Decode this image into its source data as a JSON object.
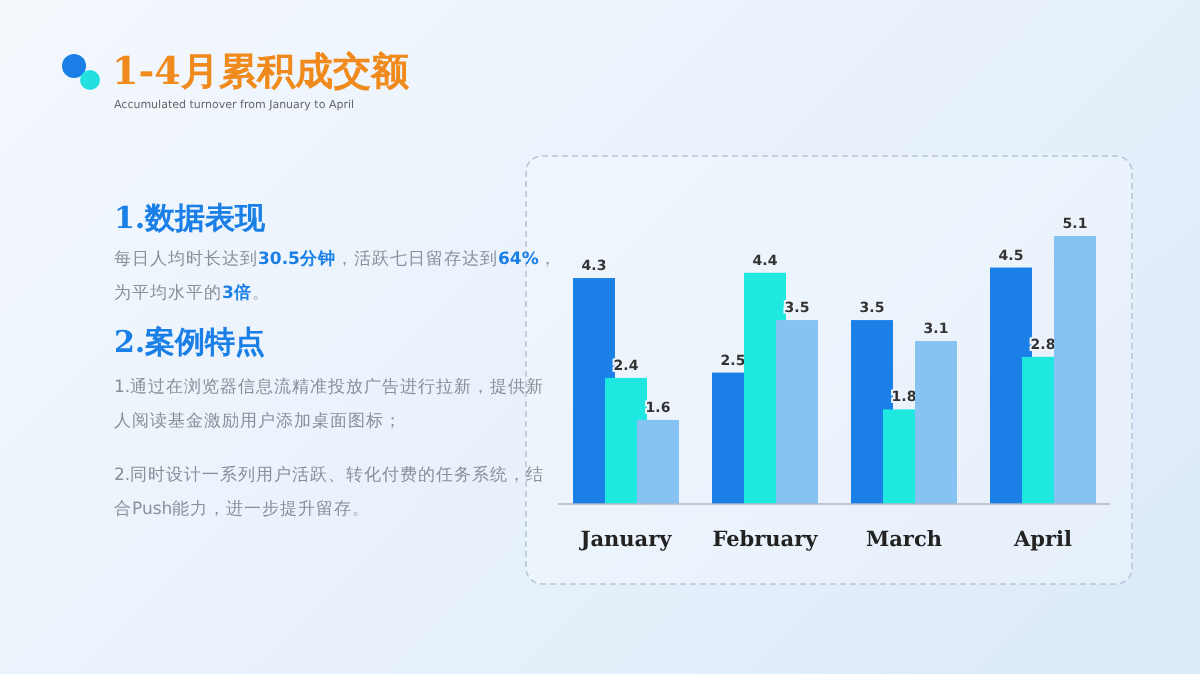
{
  "chart_data": {
    "type": "bar",
    "title": "1-4月累积成交额",
    "subtitle": "Accumulated turnover from January to April",
    "categories": [
      "January",
      "February",
      "March",
      "April"
    ],
    "series": [
      {
        "color": "#1a7fe6",
        "values": [
          4.3,
          2.5,
          3.5,
          4.5
        ]
      },
      {
        "color": "#1ee8e0",
        "values": [
          2.4,
          4.4,
          1.8,
          2.8
        ]
      },
      {
        "color": "#86c2f2",
        "values": [
          1.6,
          3.5,
          3.1,
          5.1
        ]
      }
    ],
    "data_labels": true,
    "annotations": [
      "1.数据表现",
      "每日人均时长达到**30.5分钟**，活跃七日留存达到**64%**，为平均水平的**3倍**。",
      "2.案例特点",
      "1.通过在浏览器信息流精准投放广告进行拉新，提供新人阅读基金激励用户添加桌面图标；",
      "2.同时设计一系列用户活跃、转化付费的任务系统，结合Push能力，进一步提升留存。"
    ]
  }
}
